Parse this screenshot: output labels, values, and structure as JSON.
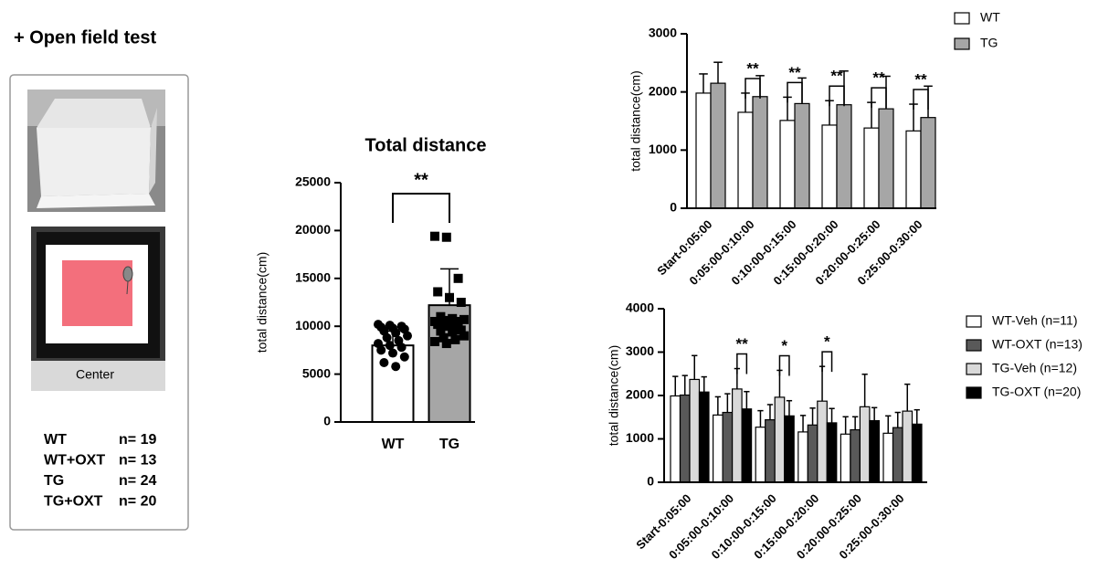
{
  "header": {
    "title": "+ Open field test"
  },
  "panel": {
    "photo_label": "Center",
    "groups": [
      {
        "name": "WT",
        "n": "n= 19"
      },
      {
        "name": "WT+OXT",
        "n": "n= 13"
      },
      {
        "name": "TG",
        "n": "n= 24"
      },
      {
        "name": "TG+OXT",
        "n": "n= 20"
      }
    ]
  },
  "chart_data": [
    {
      "type": "bar",
      "title": "Total distance",
      "ylabel": "total distance(cm)",
      "categories": [
        "WT",
        "TG"
      ],
      "values": [
        8000,
        12200
      ],
      "errors": [
        1500,
        3800
      ],
      "colors": [
        "#ffffff",
        "#a6a6a6"
      ],
      "markers": [
        "circle",
        "square"
      ],
      "points": [
        [
          10200,
          10100,
          10000,
          9900,
          9800,
          9700,
          9500,
          9300,
          9000,
          8800,
          8500,
          8200,
          8000,
          7800,
          7500,
          7200,
          6800,
          6200,
          5800
        ],
        [
          19400,
          19300,
          15000,
          13600,
          13000,
          12500,
          11000,
          10800,
          10700,
          10600,
          10500,
          10500,
          10400,
          10300,
          10200,
          10000,
          9600,
          9500,
          9400,
          9000,
          8800,
          8600,
          8400,
          8200
        ]
      ],
      "annotation": "**",
      "ylim": [
        0,
        25000
      ],
      "yticks": [
        0,
        5000,
        10000,
        15000,
        20000,
        25000
      ]
    },
    {
      "type": "grouped-bar",
      "ylabel": "total distance(cm)",
      "categories": [
        "Start-0:05:00",
        "0:05:00-0:10:00",
        "0:10:00-0:15:00",
        "0:15:00-0:20:00",
        "0:20:00-0:25:00",
        "0:25:00-0:30:00"
      ],
      "series": [
        {
          "name": "WT",
          "color": "#ffffff",
          "values": [
            1980,
            1650,
            1510,
            1430,
            1380,
            1330
          ],
          "errors": [
            330,
            330,
            400,
            420,
            440,
            460
          ]
        },
        {
          "name": "TG",
          "color": "#a6a6a6",
          "values": [
            2150,
            1920,
            1800,
            1780,
            1710,
            1560
          ],
          "errors": [
            360,
            360,
            440,
            580,
            560,
            540
          ]
        }
      ],
      "significance": [
        null,
        "**",
        "**",
        "**",
        "**",
        "**"
      ],
      "legend": "right",
      "ylim": [
        0,
        3000
      ],
      "yticks": [
        0,
        1000,
        2000,
        3000
      ]
    },
    {
      "type": "grouped-bar",
      "ylabel": "total distance(cm)",
      "categories": [
        "Start-0:05:00",
        "0:05:00-0:10:00",
        "0:10:00-0:15:00",
        "0:15:00-0:20:00",
        "0:20:00-0:25:00",
        "0:25:00-0:30:00"
      ],
      "series": [
        {
          "name": "WT-Veh (n=11)",
          "color": "#ffffff",
          "values": [
            1990,
            1550,
            1270,
            1160,
            1110,
            1130
          ],
          "errors": [
            450,
            420,
            380,
            380,
            400,
            400
          ]
        },
        {
          "name": "WT-OXT (n=13)",
          "color": "#595959",
          "values": [
            2010,
            1610,
            1440,
            1320,
            1210,
            1260
          ],
          "errors": [
            450,
            430,
            350,
            390,
            300,
            350
          ]
        },
        {
          "name": "TG-Veh (n=12)",
          "color": "#d9d9d9",
          "values": [
            2370,
            2150,
            1960,
            1870,
            1740,
            1640
          ],
          "errors": [
            550,
            470,
            620,
            800,
            750,
            620
          ]
        },
        {
          "name": "TG-OXT (n=20)",
          "color": "#000000",
          "values": [
            2080,
            1690,
            1530,
            1370,
            1420,
            1340
          ],
          "errors": [
            350,
            400,
            350,
            330,
            300,
            330
          ]
        }
      ],
      "significance": [
        null,
        "**",
        "*",
        "*",
        null,
        null
      ],
      "legend": "right",
      "ylim": [
        0,
        4000
      ],
      "yticks": [
        0,
        1000,
        2000,
        3000,
        4000
      ]
    }
  ]
}
